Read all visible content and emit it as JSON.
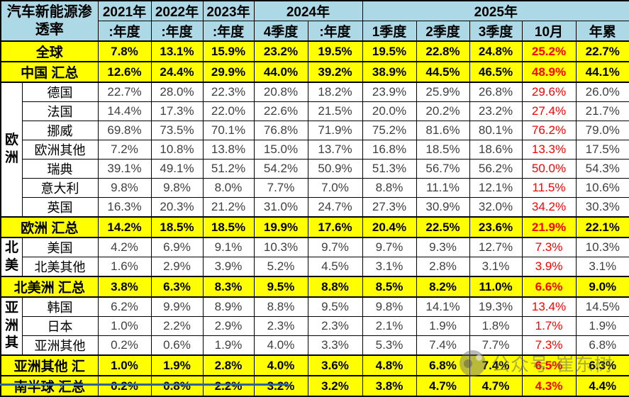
{
  "chart_data": {
    "type": "table",
    "title": "汽车新能源渗透率",
    "year_groups": [
      {
        "label": "2021年",
        "span": 1
      },
      {
        "label": "2022年",
        "span": 1
      },
      {
        "label": "2023年",
        "span": 1
      },
      {
        "label": "2024年",
        "span": 2
      },
      {
        "label": "2025年",
        "span": 5
      }
    ],
    "periods": [
      ":年度",
      ":年度",
      ":年度",
      "4季度",
      ":年度",
      "1季度",
      "2季度",
      "3季度",
      "10月",
      "年累"
    ],
    "highlight_column": "10月",
    "rows": [
      {
        "style": "summary",
        "label": "全球",
        "values": [
          "7.8%",
          "13.1%",
          "15.9%",
          "23.2%",
          "19.5%",
          "19.5%",
          "22.8%",
          "24.8%",
          "25.2%",
          "22.7%"
        ]
      },
      {
        "style": "summary",
        "label": "中国 汇总",
        "values": [
          "12.6%",
          "24.4%",
          "29.9%",
          "44.0%",
          "39.2%",
          "38.9%",
          "44.5%",
          "46.5%",
          "48.9%",
          "44.1%"
        ]
      },
      {
        "style": "plain",
        "group": {
          "label": "欧洲",
          "rowspan": 7
        },
        "label": "德国",
        "values": [
          "22.7%",
          "28.0%",
          "22.3%",
          "20.8%",
          "18.2%",
          "23.9%",
          "25.9%",
          "26.8%",
          "29.6%",
          "26.0%"
        ]
      },
      {
        "style": "plain",
        "label": "法国",
        "values": [
          "14.4%",
          "17.3%",
          "22.0%",
          "22.6%",
          "21.5%",
          "20.0%",
          "20.2%",
          "23.2%",
          "27.4%",
          "21.7%"
        ]
      },
      {
        "style": "plain",
        "label": "挪威",
        "values": [
          "69.8%",
          "73.5%",
          "70.1%",
          "76.8%",
          "71.9%",
          "75.2%",
          "81.6%",
          "80.1%",
          "76.2%",
          "79.0%"
        ]
      },
      {
        "style": "plain",
        "label": "欧洲其他",
        "values": [
          "7.2%",
          "10.8%",
          "13.8%",
          "15.0%",
          "13.7%",
          "16.8%",
          "18.5%",
          "18.6%",
          "13.3%",
          "17.5%"
        ]
      },
      {
        "style": "plain",
        "label": "瑞典",
        "values": [
          "39.1%",
          "49.1%",
          "51.2%",
          "54.2%",
          "50.9%",
          "51.3%",
          "56.7%",
          "56.2%",
          "50.0%",
          "54.3%"
        ]
      },
      {
        "style": "plain",
        "label": "意大利",
        "values": [
          "9.8%",
          "9.8%",
          "8.0%",
          "7.7%",
          "7.0%",
          "8.8%",
          "11.1%",
          "12.1%",
          "11.5%",
          "10.6%"
        ]
      },
      {
        "style": "plain",
        "label": "英国",
        "values": [
          "16.3%",
          "20.3%",
          "21.2%",
          "31.0%",
          "24.7%",
          "27.3%",
          "30.9%",
          "32.0%",
          "34.2%",
          "30.3%"
        ]
      },
      {
        "style": "summary",
        "label": "欧洲 汇总",
        "values": [
          "14.2%",
          "18.5%",
          "18.5%",
          "19.9%",
          "17.6%",
          "20.4%",
          "22.5%",
          "23.6%",
          "21.9%",
          "22.1%"
        ]
      },
      {
        "style": "plain",
        "group": {
          "label": "北美",
          "rowspan": 2
        },
        "label": "美国",
        "values": [
          "4.2%",
          "6.9%",
          "9.1%",
          "10.3%",
          "9.7%",
          "9.7%",
          "9.3%",
          "12.7%",
          "7.3%",
          "10.3%"
        ]
      },
      {
        "style": "plain",
        "label": "北美其他",
        "values": [
          "1.6%",
          "2.9%",
          "3.9%",
          "5.2%",
          "4.5%",
          "3.1%",
          "2.8%",
          "3.1%",
          "3.9%",
          "3.1%"
        ]
      },
      {
        "style": "summary",
        "label": "北美洲 汇总",
        "values": [
          "3.8%",
          "6.3%",
          "8.3%",
          "9.5%",
          "8.8%",
          "8.5%",
          "8.2%",
          "11.0%",
          "6.6%",
          "9.0%"
        ]
      },
      {
        "style": "plain",
        "group": {
          "label": "亚洲其",
          "rowspan": 3
        },
        "label": "韩国",
        "values": [
          "6.2%",
          "9.9%",
          "8.9%",
          "8.8%",
          "9.5%",
          "9.8%",
          "14.1%",
          "19.3%",
          "13.4%",
          "14.5%"
        ]
      },
      {
        "style": "plain",
        "label": "日本",
        "values": [
          "1.0%",
          "2.2%",
          "2.9%",
          "2.3%",
          "2.3%",
          "2.1%",
          "1.9%",
          "1.8%",
          "1.7%",
          "1.9%"
        ]
      },
      {
        "style": "plain",
        "label": "亚洲其他",
        "values": [
          "0.2%",
          "0.6%",
          "1.9%",
          "4.0%",
          "3.3%",
          "5.3%",
          "7.4%",
          "7.7%",
          "7.3%",
          "6.8%"
        ]
      },
      {
        "style": "summary",
        "label": "亚洲其他 汇",
        "values": [
          "1.0%",
          "1.9%",
          "2.8%",
          "4.0%",
          "3.6%",
          "4.8%",
          "6.8%",
          "7.4%",
          "6.5%",
          "6.3%"
        ]
      },
      {
        "style": "summary",
        "label": "南半球 汇总",
        "values": [
          "0.2%",
          "0.8%",
          "2.2%",
          "3.2%",
          "3.2%",
          "3.8%",
          "4.7%",
          "4.7%",
          "4.3%",
          "4.4%"
        ]
      }
    ]
  },
  "watermark": {
    "text": "公众号·崔东树",
    "icon": "wechat-official-account-icon"
  },
  "colors": {
    "header_bg": "#ADD8E6",
    "highlight_row_bg": "#FFFF00",
    "alert_text": "#FF0000",
    "data_text": "#3F3F3F",
    "grid": "#000000",
    "accent_bar": "#2B6699"
  }
}
